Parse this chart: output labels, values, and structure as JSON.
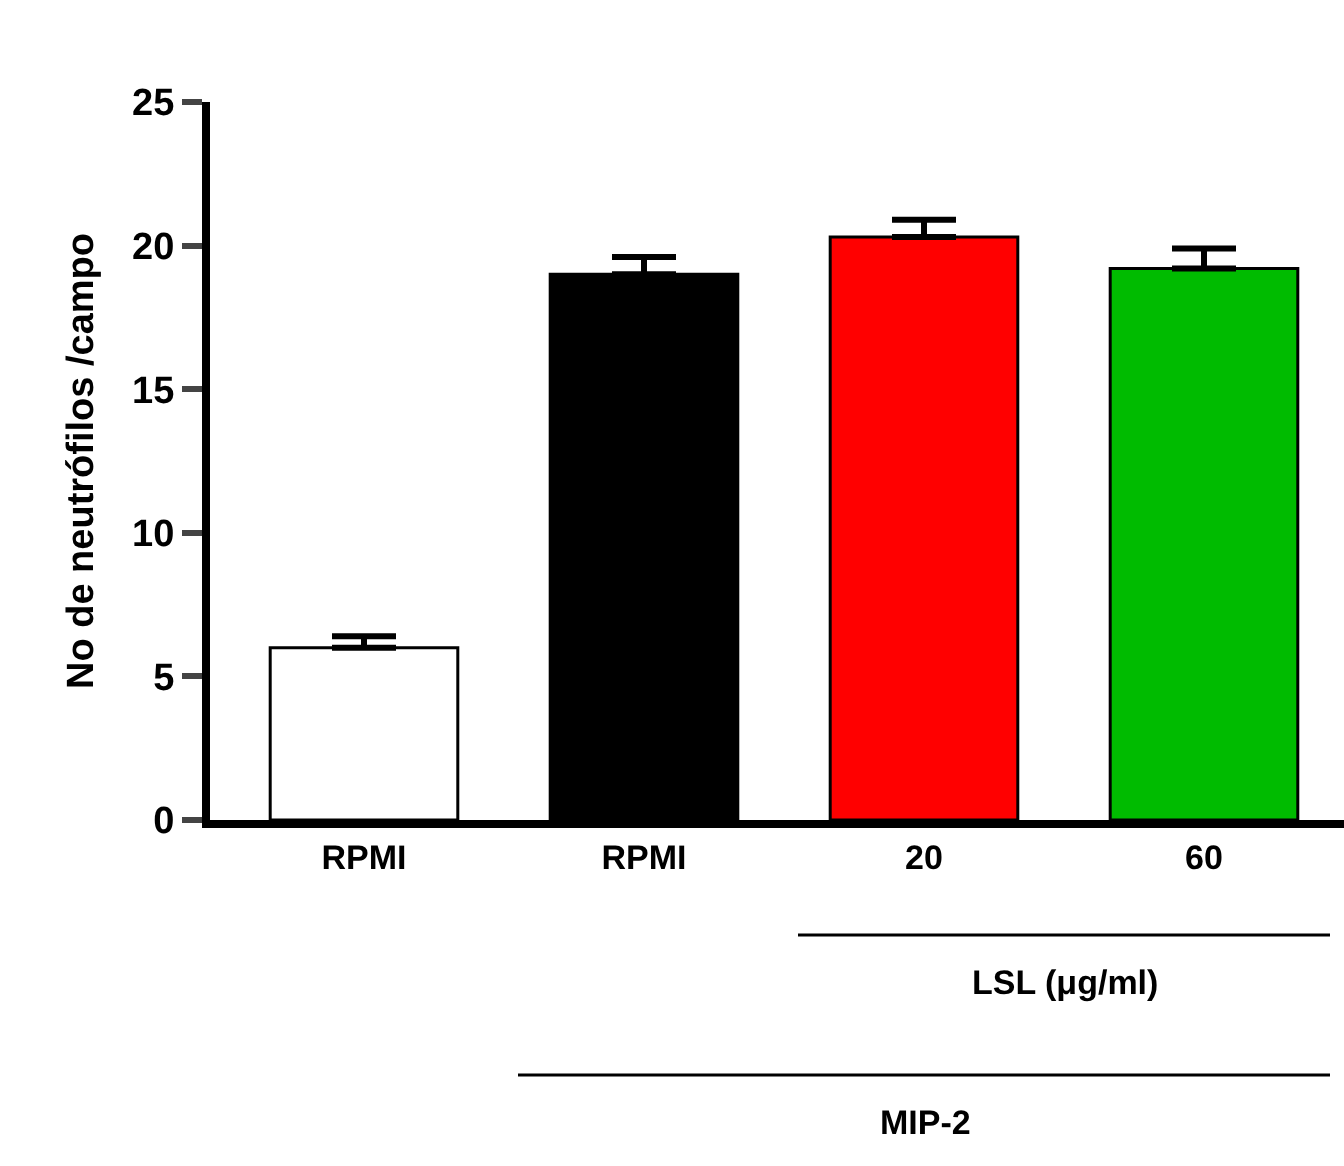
{
  "chart_data": {
    "type": "bar",
    "ylabel": "No de neutrófilos /campo",
    "categories": [
      "RPMI",
      "RPMI",
      "20",
      "60"
    ],
    "values": [
      6.0,
      19.0,
      20.3,
      19.2
    ],
    "errors": [
      0.4,
      0.6,
      0.6,
      0.7
    ],
    "colors": [
      "#ffffff",
      "#000000",
      "#ff0000",
      "#00bb00"
    ],
    "ylim": [
      0,
      25
    ],
    "yticks": [
      0,
      5,
      10,
      15,
      20,
      25
    ],
    "annotations": [
      "LSL (μg/ml)",
      "MIP-2"
    ]
  }
}
